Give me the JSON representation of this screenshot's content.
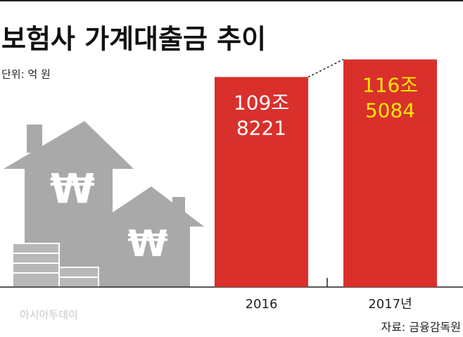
{
  "chart_data": {
    "type": "bar",
    "title": "보험사 가계대출금 추이",
    "unit_label": "단위: 억 원",
    "categories": [
      "2016",
      "2017년"
    ],
    "values": [
      1098221,
      1165084
    ],
    "value_labels": [
      "109조 8221",
      "116조 5084"
    ],
    "value_label_colors": [
      "#ffffff",
      "#ffe600"
    ],
    "color": "#d9302c",
    "ylim": [
      300000,
      1200000
    ],
    "source": "자료: 금융감독원",
    "watermark": "아시아투데이"
  }
}
